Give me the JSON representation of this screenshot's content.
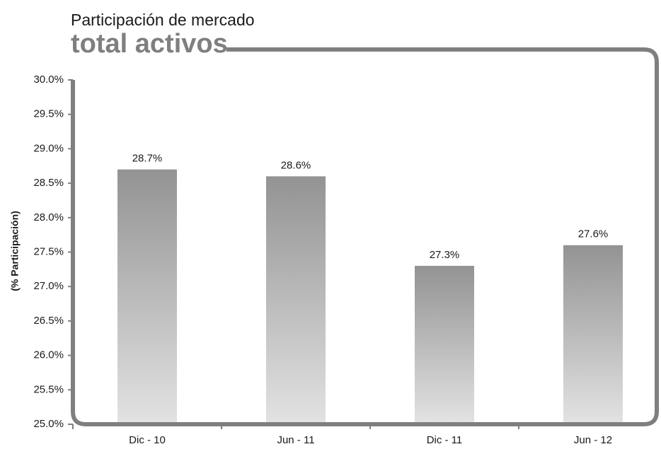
{
  "chart_data": {
    "type": "bar",
    "title": "Participación de mercado",
    "subtitle": "total activos",
    "y_label": "(% Participación)",
    "categories": [
      "Dic - 10",
      "Jun - 11",
      "Dic - 11",
      "Jun - 12"
    ],
    "values": [
      28.7,
      28.6,
      27.3,
      27.6
    ],
    "value_labels": [
      "28.7%",
      "28.6%",
      "27.3%",
      "27.6%"
    ],
    "color": "#939393",
    "ylim": [
      25,
      30
    ],
    "yticks": [
      {
        "value": 25,
        "label": "25.0%"
      },
      {
        "value": 25.5,
        "label": "25.5%"
      },
      {
        "value": 26,
        "label": "26.0%"
      },
      {
        "value": 26.5,
        "label": "26.5%"
      },
      {
        "value": 27,
        "label": "27.0%"
      },
      {
        "value": 27.5,
        "label": "27.5%"
      },
      {
        "value": 28,
        "label": "28.0%"
      },
      {
        "value": 28.5,
        "label": "28.5%"
      },
      {
        "value": 29,
        "label": "29.0%"
      },
      {
        "value": 29.5,
        "label": "29.5%"
      },
      {
        "value": 30,
        "label": "30.0%"
      }
    ],
    "grid": false
  }
}
